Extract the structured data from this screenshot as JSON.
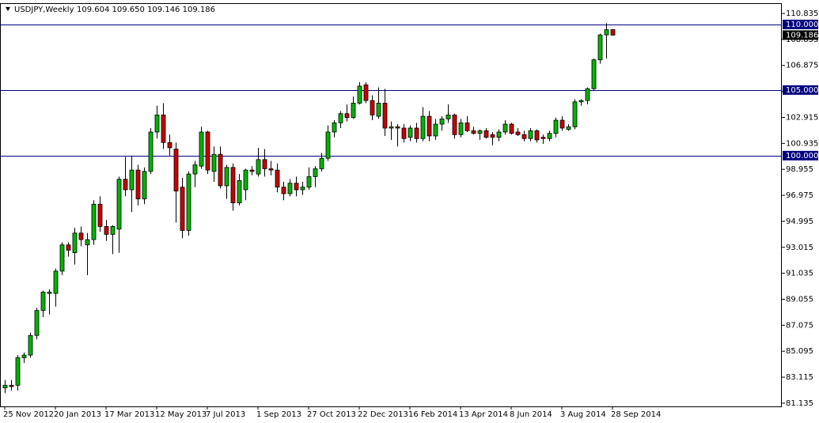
{
  "chart_data": {
    "type": "candlestick",
    "title": "USDJPY,Weekly",
    "ohlc_label": "109.604 109.650 109.146 109.186",
    "categories": [
      "25 Nov 2012",
      null,
      null,
      null,
      null,
      null,
      null,
      null,
      "20 Jan 2013",
      null,
      null,
      null,
      null,
      null,
      null,
      null,
      "17 Mar 2013",
      null,
      null,
      null,
      null,
      null,
      null,
      null,
      "12 May 2013",
      null,
      null,
      null,
      null,
      null,
      null,
      null,
      "7 Jul 2013",
      null,
      null,
      null,
      null,
      null,
      null,
      null,
      "1 Sep 2013",
      null,
      null,
      null,
      null,
      null,
      null,
      null,
      "27 Oct 2013",
      null,
      null,
      null,
      null,
      null,
      null,
      null,
      "22 Dec 2013",
      null,
      null,
      null,
      null,
      null,
      null,
      null,
      "16 Feb 2014",
      null,
      null,
      null,
      null,
      null,
      null,
      null,
      "13 Apr 2014",
      null,
      null,
      null,
      null,
      null,
      null,
      null,
      "8 Jun 2014",
      null,
      null,
      null,
      null,
      null,
      null,
      null,
      "3 Aug 2014",
      null,
      null,
      null,
      null,
      null,
      null,
      null,
      "28 Sep 2014"
    ],
    "open": [
      82.3,
      82.5,
      82.5,
      84.6,
      84.8,
      86.3,
      88.2,
      89.5,
      89.5,
      91.2,
      93.2,
      92.6,
      94.1,
      93.2,
      93.6,
      96.3,
      94.6,
      94.0,
      94.4,
      98.2,
      97.4,
      98.9,
      96.7,
      98.8,
      101.8,
      103.1,
      101.0,
      100.5,
      97.6,
      94.3,
      98.6,
      99.2,
      101.8,
      98.8,
      100.1,
      97.7,
      99.1,
      96.4,
      97.4,
      98.9,
      98.6,
      99.7,
      99.0,
      98.9,
      97.6,
      97.1,
      97.9,
      97.4,
      97.6,
      98.4,
      99.0,
      99.8,
      101.8,
      102.5,
      103.2,
      102.9,
      104.0,
      105.4,
      104.2,
      103.0,
      104.0,
      102.1,
      102.2,
      102.1,
      101.4,
      102.1,
      101.3,
      103.0,
      101.5,
      102.4,
      102.8,
      103.1,
      101.6,
      102.5,
      101.9,
      101.7,
      101.9,
      101.6,
      101.4,
      101.8,
      102.4,
      101.8,
      101.6,
      101.3,
      101.9,
      101.4,
      101.3,
      101.7,
      102.7,
      102.0,
      102.2,
      104.1,
      104.2,
      105.1,
      107.3,
      109.2,
      109.604
    ],
    "high": [
      82.9,
      82.9,
      84.8,
      85.0,
      86.5,
      88.4,
      89.7,
      89.8,
      91.4,
      93.4,
      93.4,
      94.5,
      94.6,
      94.1,
      96.6,
      96.9,
      95.1,
      94.7,
      98.4,
      99.9,
      100.0,
      99.3,
      99.1,
      102.1,
      103.8,
      104.0,
      101.6,
      101.0,
      98.3,
      98.8,
      99.6,
      102.2,
      101.9,
      100.7,
      100.7,
      99.3,
      99.4,
      98.6,
      99.0,
      99.2,
      100.6,
      100.5,
      99.6,
      99.4,
      98.0,
      98.2,
      98.4,
      98.0,
      99.1,
      99.2,
      100.2,
      102.3,
      102.7,
      103.4,
      103.9,
      104.5,
      105.6,
      105.6,
      104.6,
      105.2,
      105.1,
      102.6,
      102.4,
      102.4,
      102.3,
      102.5,
      103.7,
      103.4,
      102.8,
      103.0,
      103.9,
      103.2,
      102.8,
      103.0,
      102.2,
      102.0,
      102.1,
      101.8,
      102.0,
      102.7,
      102.5,
      102.1,
      101.9,
      102.1,
      102.0,
      101.6,
      101.9,
      102.9,
      103.0,
      102.4,
      104.3,
      104.3,
      105.2,
      107.4,
      109.3,
      110.1,
      109.65
    ],
    "low": [
      81.9,
      82.1,
      82.1,
      84.2,
      84.6,
      86.0,
      87.7,
      87.9,
      88.5,
      90.9,
      92.3,
      91.7,
      93.1,
      90.9,
      93.2,
      94.2,
      93.5,
      92.5,
      92.6,
      96.9,
      95.7,
      96.2,
      96.3,
      98.6,
      101.3,
      100.5,
      100.0,
      94.9,
      93.7,
      93.9,
      97.6,
      99.0,
      98.6,
      98.0,
      97.5,
      96.7,
      95.8,
      96.2,
      96.6,
      98.5,
      98.4,
      98.4,
      98.5,
      97.2,
      96.6,
      96.9,
      96.9,
      97.0,
      97.4,
      97.6,
      98.8,
      99.6,
      101.4,
      102.1,
      102.6,
      102.8,
      103.9,
      104.0,
      102.7,
      102.8,
      101.5,
      101.2,
      100.7,
      101.0,
      101.1,
      101.0,
      101.1,
      101.1,
      101.2,
      101.9,
      102.5,
      101.3,
      101.4,
      101.8,
      101.6,
      101.2,
      101.3,
      100.8,
      101.1,
      101.6,
      101.6,
      101.5,
      101.1,
      101.1,
      101.0,
      100.9,
      101.1,
      101.4,
      101.9,
      101.9,
      102.0,
      103.8,
      103.9,
      105.0,
      107.0,
      107.4,
      109.146
    ],
    "close": [
      82.5,
      82.4,
      84.6,
      84.8,
      86.3,
      88.2,
      89.6,
      89.6,
      91.2,
      93.2,
      92.8,
      94.1,
      93.6,
      93.6,
      96.3,
      94.6,
      94.0,
      94.6,
      98.2,
      97.4,
      98.9,
      96.7,
      98.8,
      101.8,
      103.1,
      101.0,
      100.6,
      97.3,
      94.3,
      98.6,
      99.3,
      101.8,
      98.9,
      100.1,
      97.7,
      99.1,
      96.4,
      98.1,
      98.9,
      98.8,
      99.7,
      99.0,
      98.9,
      97.6,
      97.1,
      97.9,
      97.4,
      97.6,
      98.4,
      99.0,
      99.8,
      101.8,
      102.5,
      103.2,
      102.9,
      104.0,
      105.3,
      104.2,
      103.1,
      104.0,
      102.1,
      102.2,
      102.1,
      101.3,
      102.1,
      101.3,
      103.0,
      101.5,
      102.4,
      102.8,
      103.1,
      101.6,
      102.5,
      101.9,
      101.7,
      101.9,
      101.4,
      101.4,
      101.8,
      102.4,
      101.7,
      101.6,
      101.3,
      101.9,
      101.2,
      101.3,
      101.7,
      102.7,
      102.1,
      102.2,
      104.1,
      104.2,
      105.1,
      107.3,
      109.2,
      109.6,
      109.186
    ],
    "up_color": "#00b400",
    "down_color": "#c80000",
    "ylim": [
      80.89,
      111.62
    ],
    "yticks": [
      110.835,
      108.855,
      106.875,
      104.895,
      102.915,
      100.935,
      98.955,
      96.975,
      94.995,
      93.015,
      91.035,
      89.055,
      87.075,
      85.095,
      83.115,
      81.135
    ],
    "lines": [
      {
        "value": 110,
        "label": "110.000"
      },
      {
        "value": 105,
        "label": "105.000"
      },
      {
        "value": 100,
        "label": "100.000"
      }
    ],
    "line_color": "#000080"
  }
}
